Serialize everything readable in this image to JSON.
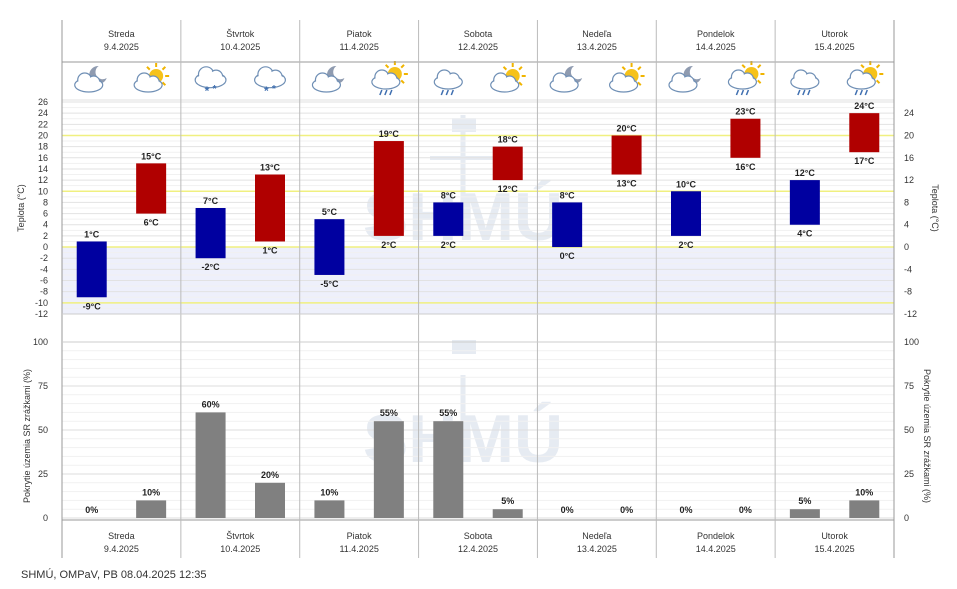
{
  "footer_text": "SHMÚ, OMPaV, PB 08.04.2025 12:35",
  "watermark_text": "SHMÚ",
  "days": [
    {
      "name": "Streda",
      "date": "9.4.2025",
      "icons": [
        "night-partly-cloudy-icon",
        "day-partly-cloudy-icon"
      ]
    },
    {
      "name": "Štvrtok",
      "date": "10.4.2025",
      "icons": [
        "cloud-snow-icon",
        "cloud-snow-icon"
      ]
    },
    {
      "name": "Piatok",
      "date": "11.4.2025",
      "icons": [
        "night-partly-cloudy-icon",
        "day-cloud-rain-icon"
      ]
    },
    {
      "name": "Sobota",
      "date": "12.4.2025",
      "icons": [
        "cloud-rain-icon",
        "day-partly-cloudy-icon"
      ]
    },
    {
      "name": "Nedeľa",
      "date": "13.4.2025",
      "icons": [
        "night-partly-cloudy-icon",
        "day-partly-cloudy-icon"
      ]
    },
    {
      "name": "Pondelok",
      "date": "14.4.2025",
      "icons": [
        "night-partly-cloudy-icon",
        "day-cloud-rain-icon"
      ]
    },
    {
      "name": "Utorok",
      "date": "15.4.2025",
      "icons": [
        "cloud-rain-icon",
        "day-cloud-rain-icon"
      ]
    }
  ],
  "chart_data": [
    {
      "type": "bar",
      "kind": "floating-range",
      "ylabel": "Teplota (°C)",
      "ylabel_right": "Teplota (°C)",
      "ylim": [
        -12,
        26
      ],
      "left_ticks": [
        -12,
        -10,
        -8,
        -6,
        -4,
        -2,
        0,
        2,
        4,
        6,
        8,
        10,
        12,
        14,
        16,
        18,
        20,
        22,
        24,
        26
      ],
      "right_ticks": [
        -12,
        -8,
        -4,
        0,
        4,
        8,
        12,
        16,
        20,
        24
      ],
      "highlight_lines": [
        -10,
        0,
        10,
        20
      ],
      "below_zero_shading": true,
      "unit": "°C",
      "colors": {
        "night": "#0000a0",
        "day": "#b00000",
        "below_zero": "#eef0fb",
        "highlight": "#f0f080"
      },
      "bars": [
        {
          "day": 0,
          "period": "night",
          "min": -9,
          "max": 1
        },
        {
          "day": 0,
          "period": "day",
          "min": 6,
          "max": 15
        },
        {
          "day": 1,
          "period": "night",
          "min": -2,
          "max": 7
        },
        {
          "day": 1,
          "period": "day",
          "min": 1,
          "max": 13
        },
        {
          "day": 2,
          "period": "night",
          "min": -5,
          "max": 5
        },
        {
          "day": 2,
          "period": "day",
          "min": 2,
          "max": 19
        },
        {
          "day": 3,
          "period": "night",
          "min": 2,
          "max": 8
        },
        {
          "day": 3,
          "period": "day",
          "min": 12,
          "max": 18
        },
        {
          "day": 4,
          "period": "night",
          "min": 0,
          "max": 8
        },
        {
          "day": 4,
          "period": "day",
          "min": 13,
          "max": 20
        },
        {
          "day": 5,
          "period": "night",
          "min": 2,
          "max": 10
        },
        {
          "day": 5,
          "period": "day",
          "min": 16,
          "max": 23
        },
        {
          "day": 6,
          "period": "night",
          "min": 4,
          "max": 12
        },
        {
          "day": 6,
          "period": "day",
          "min": 17,
          "max": 24
        }
      ]
    },
    {
      "type": "bar",
      "ylabel": "Pokrytie územia SR zrážkami (%)",
      "ylabel_right": "Pokrytie územia SR zrážkami (%)",
      "ylim": [
        0,
        100
      ],
      "ticks": [
        0,
        25,
        50,
        75,
        100
      ],
      "unit": "%",
      "color": "#808080",
      "values": [
        0,
        10,
        60,
        20,
        10,
        55,
        55,
        5,
        0,
        0,
        0,
        0,
        5,
        10
      ]
    }
  ]
}
